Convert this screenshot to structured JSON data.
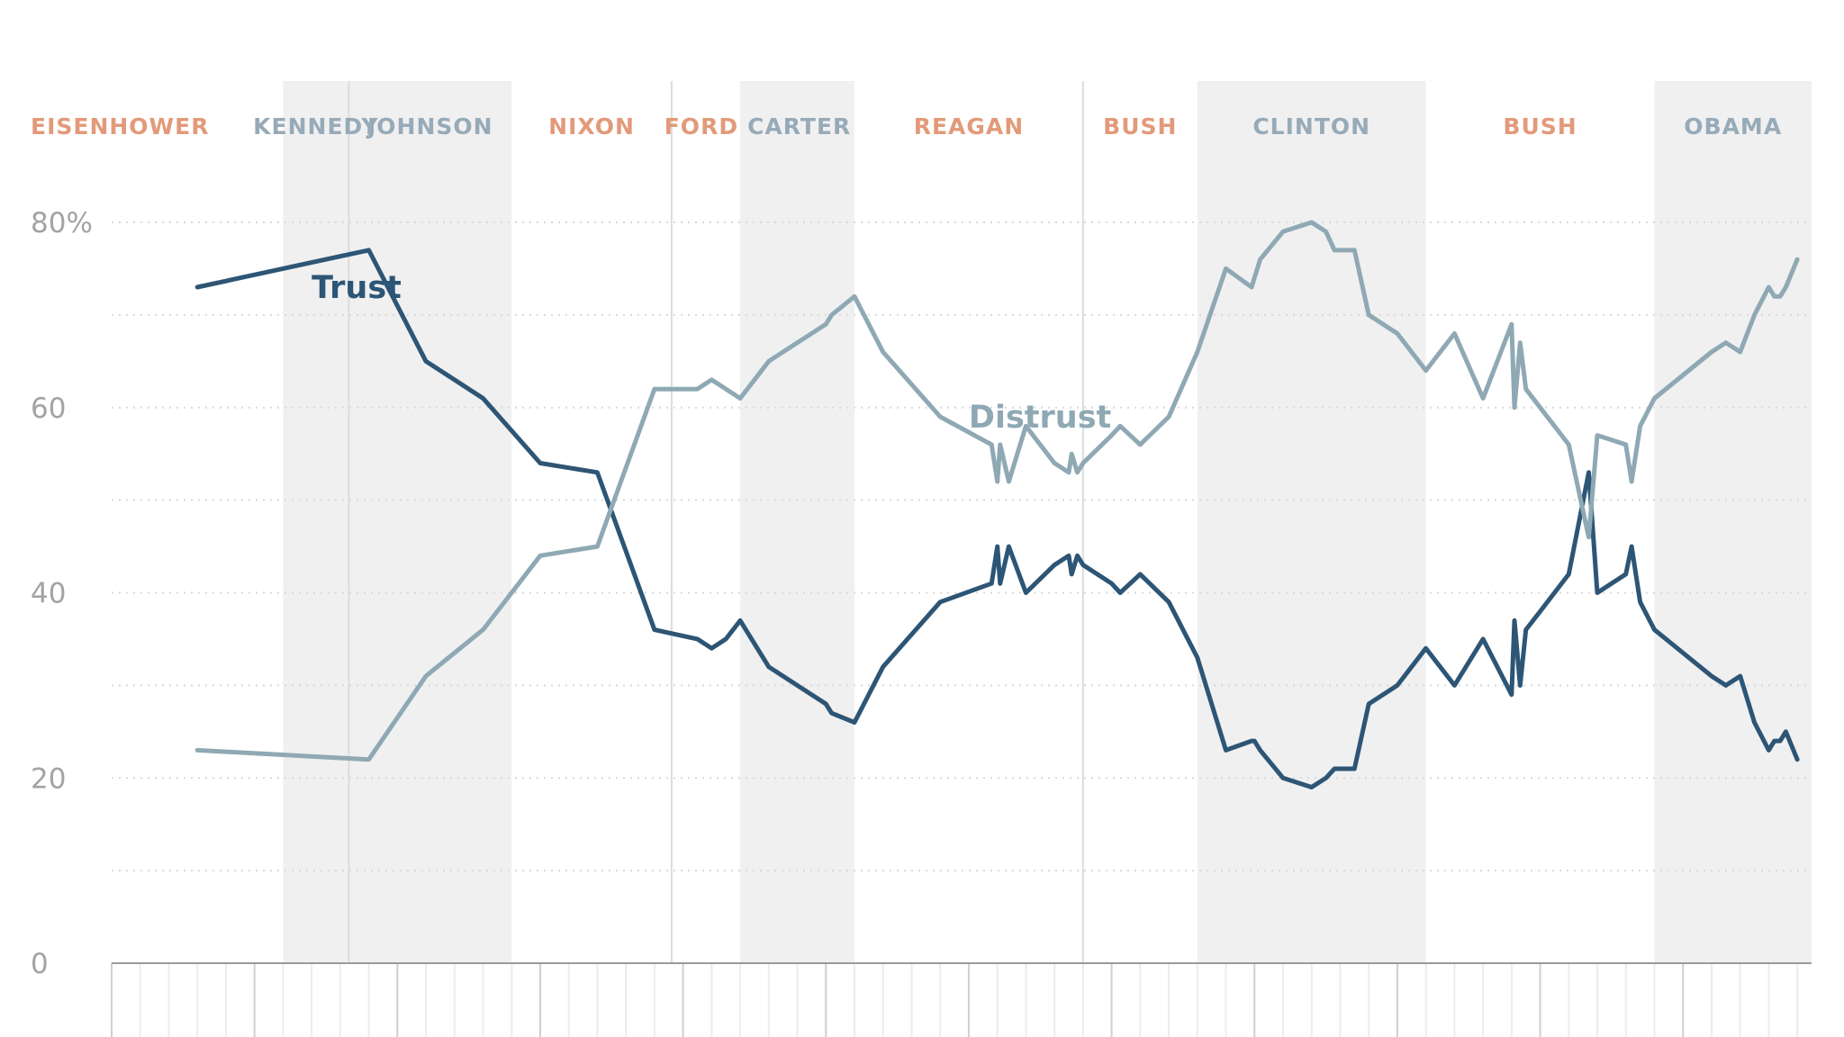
{
  "colors": {
    "trust": "#2d5575",
    "distrust": "#8fa9b4",
    "republican": "#e29a7a",
    "democrat": "#97aab8",
    "shade": "#f0f0f1",
    "grid": "#d9d9d9",
    "axis": "#9a9a9a"
  },
  "chart_data": {
    "type": "line",
    "title": "",
    "xlabel": "",
    "ylabel": "",
    "xlim": [
      1955,
      2014.5
    ],
    "ylim": [
      0,
      80
    ],
    "yticks": [
      0,
      20,
      40,
      60,
      80
    ],
    "ytick_labels": [
      "0",
      "20",
      "40",
      "60",
      "80%"
    ],
    "grid": true,
    "presidents": [
      {
        "name": "EISENHOWER",
        "party": "R",
        "start": 1955,
        "end": 1961
      },
      {
        "name": "KENNEDY",
        "party": "D",
        "start": 1961,
        "end": 1963.3
      },
      {
        "name": "JOHNSON",
        "party": "D",
        "start": 1963.3,
        "end": 1969
      },
      {
        "name": "NIXON",
        "party": "R",
        "start": 1969,
        "end": 1974.6
      },
      {
        "name": "FORD",
        "party": "R",
        "start": 1974.6,
        "end": 1977
      },
      {
        "name": "CARTER",
        "party": "D",
        "start": 1977,
        "end": 1981
      },
      {
        "name": "REAGAN",
        "party": "R",
        "start": 1981,
        "end": 1989
      },
      {
        "name": "BUSH",
        "party": "R",
        "start": 1989,
        "end": 1993
      },
      {
        "name": "CLINTON",
        "party": "D",
        "start": 1993,
        "end": 2001
      },
      {
        "name": "BUSH",
        "party": "R",
        "start": 2001,
        "end": 2009
      },
      {
        "name": "OBAMA",
        "party": "D",
        "start": 2009,
        "end": 2014.5
      }
    ],
    "series": [
      {
        "name": "Trust",
        "x": [
          1958,
          1964,
          1966,
          1968,
          1970,
          1972,
          1974,
          1975.5,
          1976,
          1976.5,
          1977,
          1978,
          1979,
          1980,
          1980.2,
          1981,
          1982,
          1984,
          1985.8,
          1986,
          1986.1,
          1986.4,
          1987,
          1988,
          1988.5,
          1988.6,
          1988.8,
          1989,
          1990,
          1990.3,
          1991,
          1992,
          1993,
          1994,
          1994.9,
          1995,
          1995.2,
          1996,
          1997,
          1997.5,
          1997.8,
          1998,
          1998.5,
          1999,
          2000,
          2001,
          2002,
          2003,
          2004,
          2004.1,
          2004.3,
          2004.5,
          2005,
          2006,
          2006.7,
          2007,
          2008,
          2008.2,
          2008.5,
          2009,
          2011,
          2011.5,
          2012,
          2012.5,
          2013,
          2013.2,
          2013.4,
          2013.6,
          2014
        ],
        "values": [
          73,
          77,
          65,
          61,
          54,
          53,
          36,
          35,
          34,
          35,
          37,
          32,
          30,
          28,
          27,
          26,
          32,
          39,
          41,
          45,
          41,
          45,
          40,
          43,
          44,
          42,
          44,
          43,
          41,
          40,
          42,
          39,
          33,
          23,
          24,
          24,
          23,
          20,
          19,
          20,
          21,
          21,
          21,
          28,
          30,
          34,
          30,
          35,
          29,
          37,
          30,
          36,
          38,
          42,
          53,
          40,
          42,
          45,
          39,
          36,
          31,
          30,
          31,
          26,
          23,
          24,
          24,
          25,
          22
        ]
      },
      {
        "name": "Distrust",
        "x": [
          1958,
          1964,
          1966,
          1968,
          1970,
          1972,
          1974,
          1975.5,
          1976,
          1976.5,
          1977,
          1978,
          1979,
          1980,
          1980.2,
          1981,
          1982,
          1984,
          1985.8,
          1986,
          1986.1,
          1986.4,
          1987,
          1988,
          1988.5,
          1988.6,
          1988.8,
          1989,
          1990,
          1990.3,
          1991,
          1992,
          1993,
          1994,
          1994.9,
          1995,
          1995.2,
          1996,
          1997,
          1997.5,
          1997.8,
          1998,
          1998.5,
          1999,
          2000,
          2001,
          2002,
          2003,
          2004,
          2004.1,
          2004.3,
          2004.5,
          2005,
          2006,
          2006.7,
          2007,
          2008,
          2008.2,
          2008.5,
          2009,
          2011,
          2011.5,
          2012,
          2012.5,
          2013,
          2013.2,
          2013.4,
          2013.6,
          2014
        ],
        "values": [
          23,
          22,
          31,
          36,
          44,
          45,
          62,
          62,
          63,
          62,
          61,
          65,
          67,
          69,
          70,
          72,
          66,
          59,
          56,
          52,
          56,
          52,
          58,
          54,
          53,
          55,
          53,
          54,
          57,
          58,
          56,
          59,
          66,
          75,
          73,
          74,
          76,
          79,
          80,
          79,
          77,
          77,
          77,
          70,
          68,
          64,
          68,
          61,
          69,
          60,
          67,
          62,
          60,
          56,
          46,
          57,
          56,
          52,
          58,
          61,
          66,
          67,
          66,
          70,
          73,
          72,
          72,
          73,
          76
        ]
      }
    ],
    "series_labels": [
      {
        "name": "Trust",
        "x": 1962,
        "y": 73
      },
      {
        "name": "Distrust",
        "x": 1985,
        "y": 59
      }
    ]
  }
}
